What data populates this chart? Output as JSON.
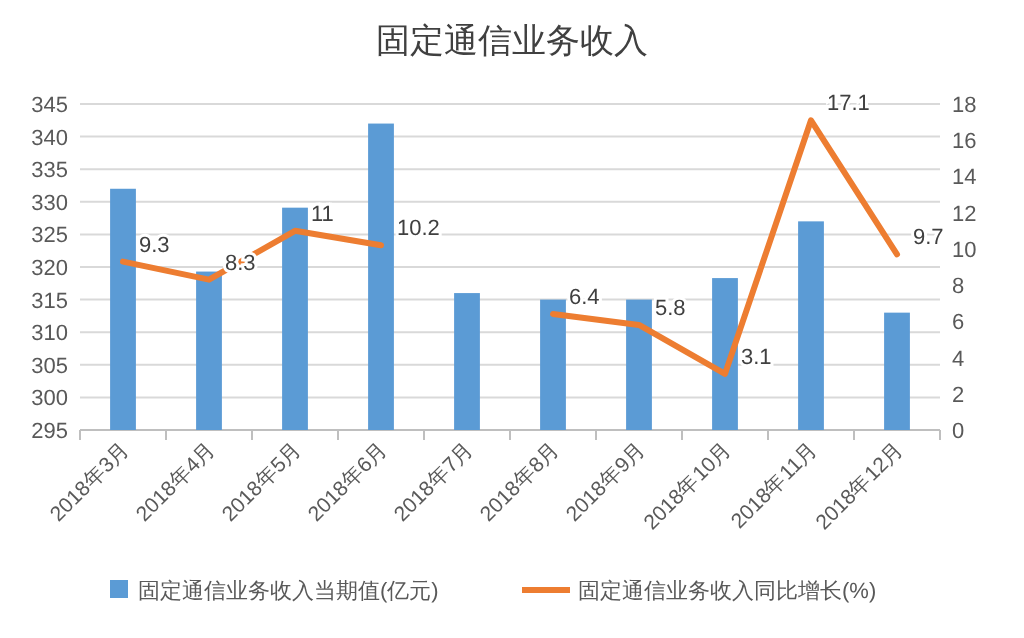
{
  "chart_data": {
    "type": "bar",
    "title": "固定通信业务收入",
    "categories": [
      "2018年3月",
      "2018年4月",
      "2018年5月",
      "2018年6月",
      "2018年7月",
      "2018年8月",
      "2018年9月",
      "2018年10月",
      "2018年11月",
      "2018年12月"
    ],
    "series": [
      {
        "name": "固定通信业务收入当期值(亿元)",
        "color": "#5b9bd5",
        "values": [
          332,
          319.3,
          329.1,
          342,
          316,
          315,
          315,
          318.3,
          327,
          313
        ]
      },
      {
        "name": "固定通信业务收入同比增长(%)",
        "type": "line",
        "axis": "y2",
        "color": "#ed7d31",
        "values": [
          9.3,
          8.3,
          11,
          10.2,
          null,
          6.4,
          5.8,
          3.1,
          17.1,
          9.7
        ],
        "value_labels": [
          "9.3",
          "8.3",
          "11",
          "10.2",
          null,
          "6.4",
          "5.8",
          "3.1",
          "17.1",
          "9.7"
        ]
      }
    ],
    "ylim": [
      295,
      345
    ],
    "yticks": [
      295,
      300,
      305,
      310,
      315,
      320,
      325,
      330,
      335,
      340,
      345
    ],
    "y2lim": [
      0,
      18
    ],
    "y2ticks": [
      0,
      2,
      4,
      6,
      8,
      10,
      12,
      14,
      16,
      18
    ],
    "grid": "y",
    "legend": "bottom"
  }
}
